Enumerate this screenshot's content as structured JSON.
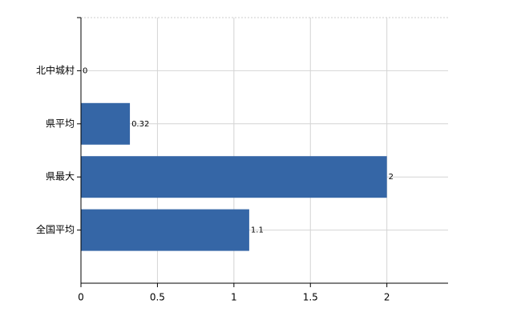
{
  "chart_data": {
    "type": "barh",
    "categories": [
      "北中城村",
      "県平均",
      "県最大",
      "全国平均"
    ],
    "values": [
      0,
      0.32,
      2,
      1.1
    ],
    "color": "#3566a6",
    "xlim": [
      0,
      2.4
    ],
    "xticks": [
      0,
      0.5,
      1,
      1.5,
      2
    ],
    "grid": true
  }
}
